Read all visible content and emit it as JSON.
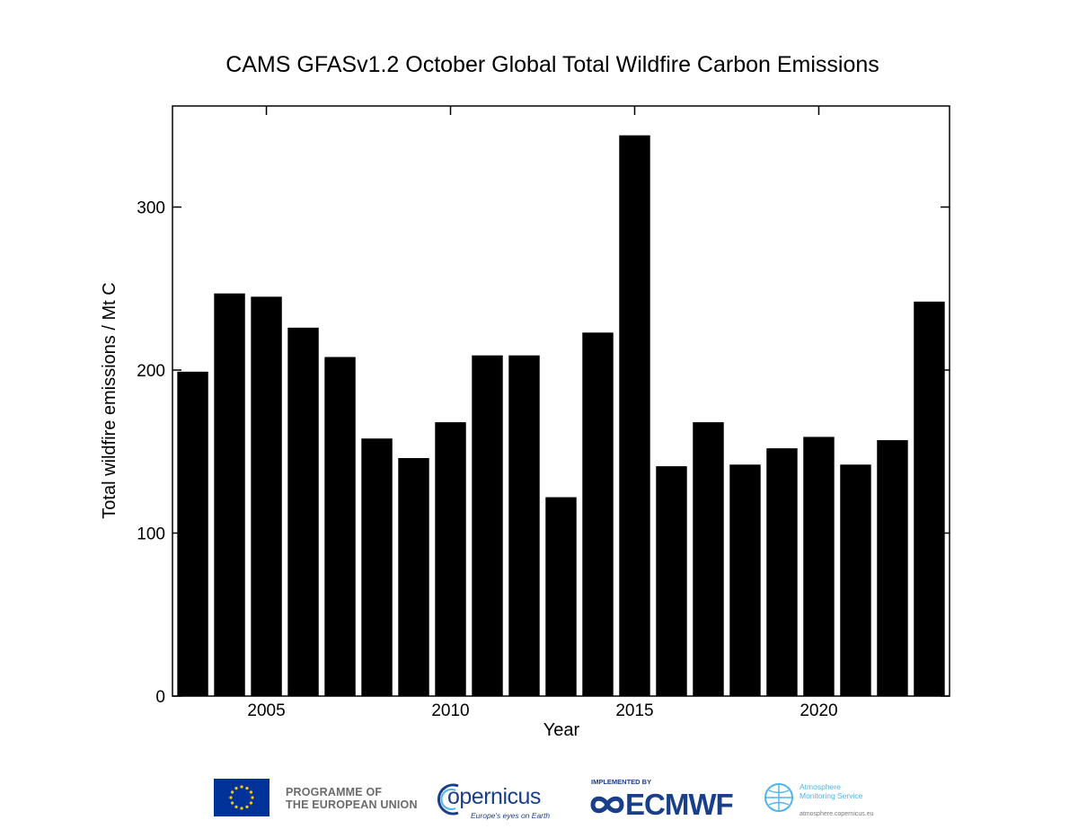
{
  "chart_data": {
    "type": "bar",
    "title": "CAMS GFASv1.2 October Global Total Wildfire Carbon Emissions",
    "xlabel": "Year",
    "ylabel": "Total wildfire emissions / Mt C",
    "x": [
      2003,
      2004,
      2005,
      2006,
      2007,
      2008,
      2009,
      2010,
      2011,
      2012,
      2013,
      2014,
      2015,
      2016,
      2017,
      2018,
      2019,
      2020,
      2021,
      2022,
      2023
    ],
    "values": [
      199,
      247,
      245,
      226,
      208,
      158,
      146,
      168,
      209,
      209,
      122,
      223,
      344,
      141,
      168,
      142,
      152,
      159,
      142,
      157,
      242
    ],
    "xlim": [
      2002.45,
      2023.55
    ],
    "ylim": [
      0,
      362
    ],
    "xticks": [
      2005,
      2010,
      2015,
      2020
    ],
    "yticks": [
      0,
      100,
      200,
      300
    ],
    "bar_color": "#000000",
    "grid": false,
    "legend": "none"
  },
  "footer": {
    "eu_line1": "PROGRAMME OF",
    "eu_line2": "THE EUROPEAN UNION",
    "copernicus_name": "opernicus",
    "copernicus_tagline": "Europe's eyes on Earth",
    "ecmwf_implemented": "IMPLEMENTED BY",
    "ecmwf_name": "ECMWF",
    "cams_line1": "Atmosphere",
    "cams_line2": "Monitoring Service",
    "cams_url": "atmosphere.copernicus.eu",
    "eu_color": "#003399",
    "copernicus_color": "#1a3f8a",
    "cams_color": "#4fb5e6"
  }
}
